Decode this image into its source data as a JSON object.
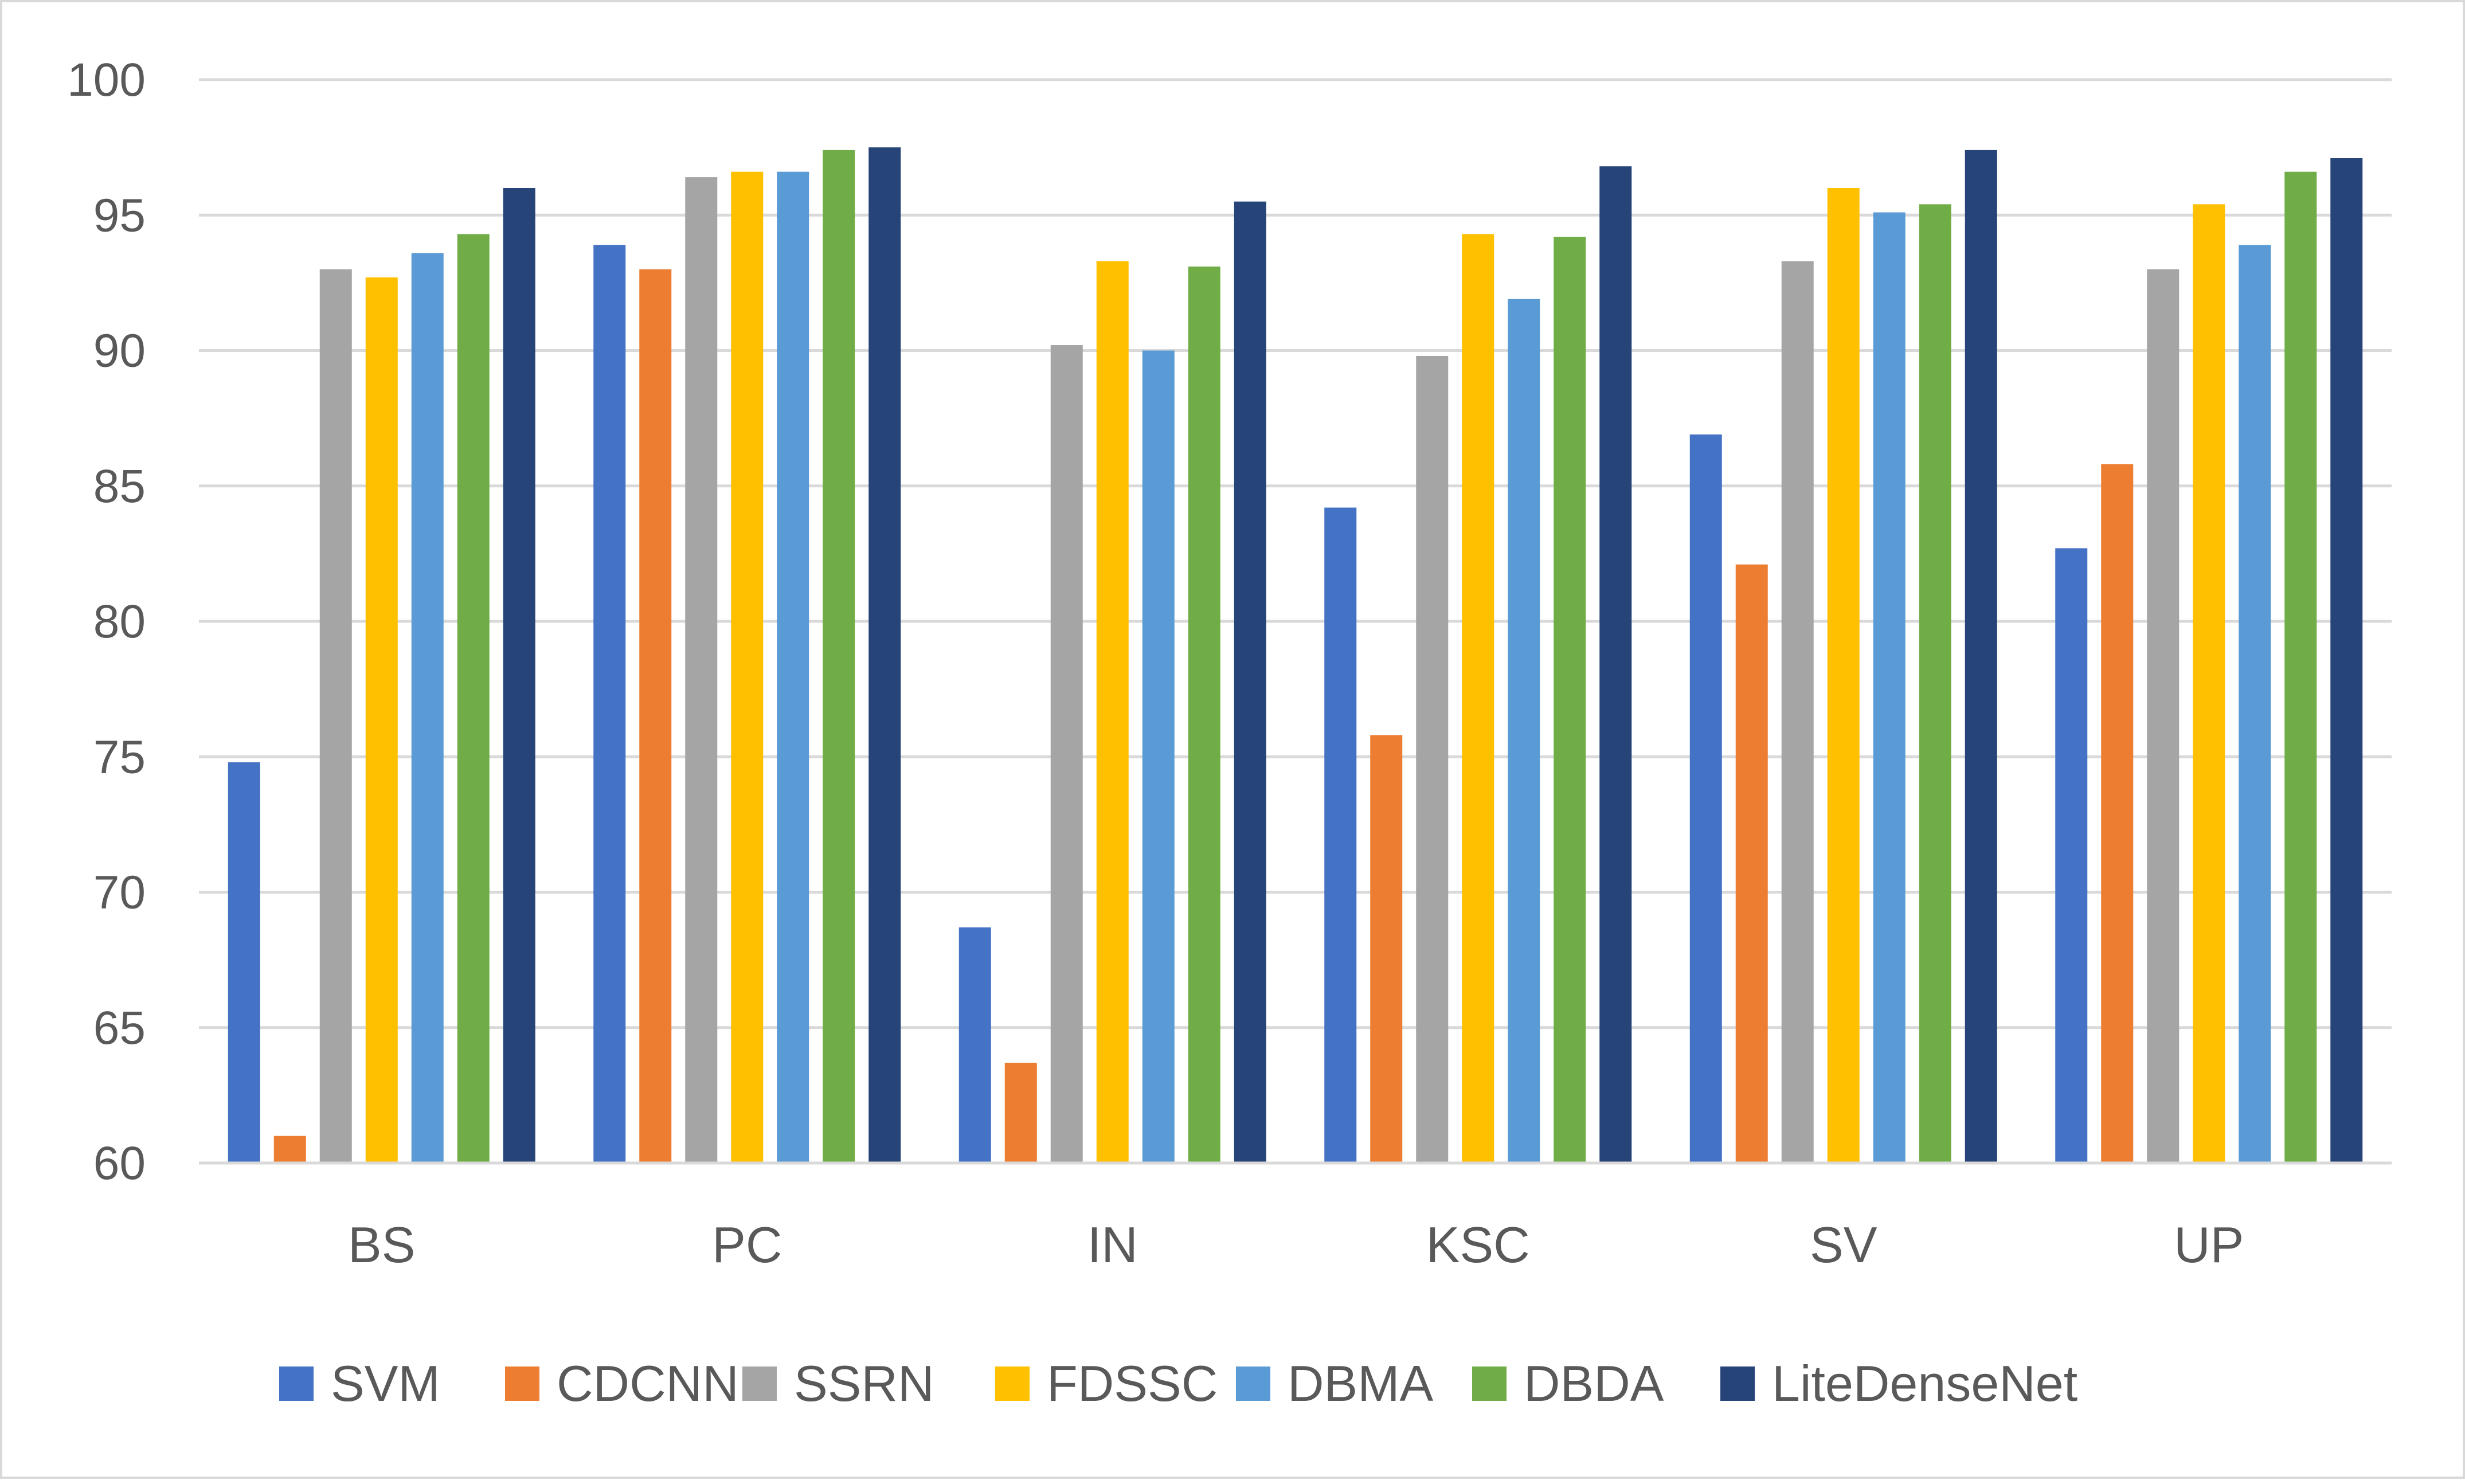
{
  "chart_data": {
    "type": "bar",
    "title": "",
    "xlabel": "",
    "ylabel": "",
    "ylim": [
      60,
      100
    ],
    "yticks": [
      60,
      65,
      70,
      75,
      80,
      85,
      90,
      95,
      100
    ],
    "grid": true,
    "legend_position": "bottom",
    "categories": [
      "BS",
      "PC",
      "IN",
      "KSC",
      "SV",
      "UP"
    ],
    "series": [
      {
        "name": "SVM",
        "color": "#4472C4",
        "values": [
          74.8,
          93.9,
          68.7,
          84.2,
          86.9,
          82.7
        ]
      },
      {
        "name": "CDCNN",
        "color": "#ED7D31",
        "values": [
          61.0,
          93.0,
          63.7,
          75.8,
          82.1,
          85.8
        ]
      },
      {
        "name": "SSRN",
        "color": "#A5A5A5",
        "values": [
          93.0,
          96.4,
          90.2,
          89.8,
          93.3,
          93.0
        ]
      },
      {
        "name": "FDSSC",
        "color": "#FFC000",
        "values": [
          92.7,
          96.6,
          93.3,
          94.3,
          96.0,
          95.4
        ]
      },
      {
        "name": "DBMA",
        "color": "#5B9BD5",
        "values": [
          93.6,
          96.6,
          90.0,
          91.9,
          95.1,
          93.9
        ]
      },
      {
        "name": "DBDA",
        "color": "#70AD47",
        "values": [
          94.3,
          97.4,
          93.1,
          94.2,
          95.4,
          96.6
        ]
      },
      {
        "name": "LiteDenseNet",
        "color": "#264478",
        "values": [
          96.0,
          97.5,
          95.5,
          96.8,
          97.4,
          97.1
        ]
      }
    ]
  }
}
